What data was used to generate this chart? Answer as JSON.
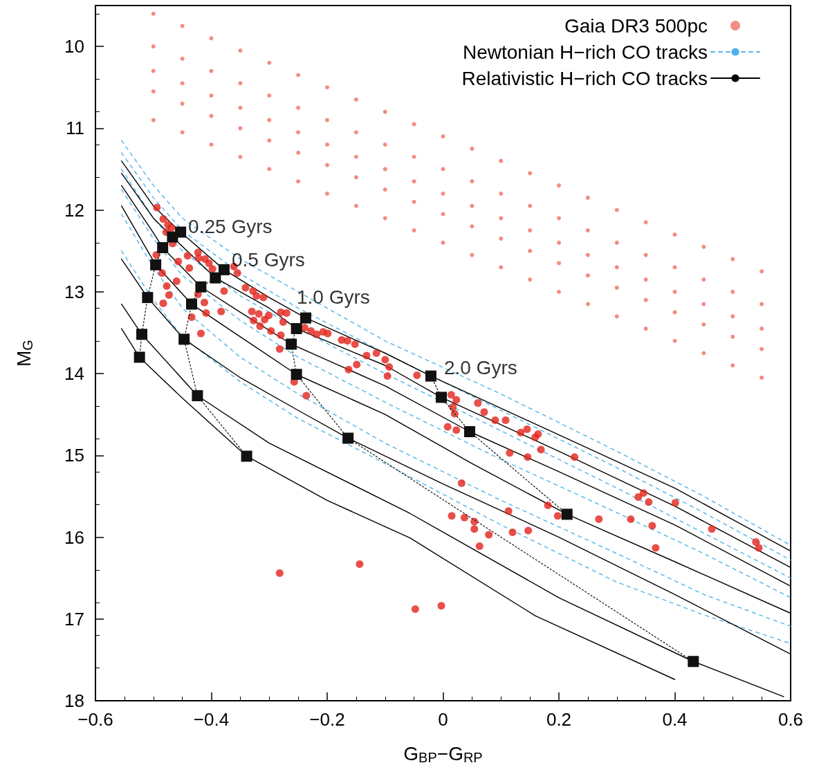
{
  "chart_data": {
    "type": "scatter",
    "xlabel": "G$_{BP}$−G$_{RP}$",
    "ylabel": "M$_{G}$",
    "xlim": [
      -0.6,
      0.6
    ],
    "ylim": [
      18,
      9.5
    ],
    "xticks": [
      {
        "value": -0.6,
        "label": "−0.6"
      },
      {
        "value": -0.4,
        "label": "−0.4"
      },
      {
        "value": -0.2,
        "label": "−0.2"
      },
      0,
      0.2,
      0.4,
      0.6
    ],
    "yticks": [
      10,
      11,
      12,
      13,
      14,
      15,
      16,
      17,
      18
    ],
    "grid": false,
    "legend": "top right",
    "annotations": [
      {
        "text": "0.25 Gyrs",
        "x": -0.453,
        "y": 12.27
      },
      {
        "text": "0.5 Gyrs",
        "x": -0.378,
        "y": 12.73
      },
      {
        "text": "1.0 Gyrs",
        "x": -0.237,
        "y": 13.32
      },
      {
        "text": "2.0 Gyrs",
        "x": -0.021,
        "y": 14.03
      }
    ],
    "series": [
      {
        "name": "Gaia DR3 500pc",
        "color": "#f07060",
        "marker": "circle",
        "x": [
          -0.5,
          -0.5,
          -0.5,
          -0.5,
          -0.5,
          -0.45,
          -0.45,
          -0.45,
          -0.45,
          -0.45,
          -0.4,
          -0.4,
          -0.4,
          -0.4,
          -0.4,
          -0.35,
          -0.35,
          -0.35,
          -0.35,
          -0.35,
          -0.3,
          -0.3,
          -0.3,
          -0.3,
          -0.3,
          -0.25,
          -0.25,
          -0.25,
          -0.25,
          -0.25,
          -0.2,
          -0.2,
          -0.2,
          -0.2,
          -0.2,
          -0.15,
          -0.15,
          -0.15,
          -0.15,
          -0.15,
          -0.1,
          -0.1,
          -0.1,
          -0.1,
          -0.1,
          -0.05,
          -0.05,
          -0.05,
          -0.05,
          -0.05,
          0,
          0,
          0,
          0,
          0,
          0.05,
          0.05,
          0.05,
          0.05,
          0.05,
          0.1,
          0.1,
          0.1,
          0.1,
          0.1,
          0.15,
          0.15,
          0.15,
          0.15,
          0.15,
          0.2,
          0.2,
          0.2,
          0.2,
          0.2,
          0.25,
          0.25,
          0.25,
          0.25,
          0.25,
          0.3,
          0.3,
          0.3,
          0.3,
          0.3,
          0.35,
          0.35,
          0.35,
          0.35,
          0.35,
          0.4,
          0.4,
          0.4,
          0.4,
          0.4,
          0.45,
          0.45,
          0.45,
          0.45,
          0.45,
          0.5,
          0.5,
          0.5,
          0.5,
          0.5,
          0.55,
          0.55,
          0.55,
          0.55,
          0.55
        ],
        "values": [
          9.6,
          10.0,
          10.3,
          10.55,
          10.9,
          9.75,
          10.15,
          10.45,
          10.7,
          11.05,
          9.9,
          10.3,
          10.6,
          10.85,
          11.2,
          10.05,
          10.45,
          10.75,
          11.0,
          11.35,
          10.2,
          10.6,
          10.9,
          11.15,
          11.5,
          10.35,
          10.75,
          11.05,
          11.3,
          11.65,
          10.5,
          10.9,
          11.2,
          11.45,
          11.8,
          10.65,
          11.05,
          11.35,
          11.6,
          11.95,
          10.8,
          11.2,
          11.5,
          11.75,
          12.1,
          10.95,
          11.35,
          11.65,
          11.9,
          12.25,
          11.1,
          11.5,
          11.8,
          12.05,
          12.4,
          11.25,
          11.65,
          11.95,
          12.2,
          12.55,
          11.4,
          11.8,
          12.1,
          12.35,
          12.7,
          11.55,
          11.95,
          12.25,
          12.5,
          12.85,
          11.7,
          12.1,
          12.4,
          12.65,
          13.0,
          11.85,
          12.25,
          12.55,
          12.8,
          13.15,
          12.0,
          12.4,
          12.7,
          12.95,
          13.3,
          12.15,
          12.55,
          12.85,
          13.1,
          13.45,
          12.3,
          12.7,
          13.0,
          13.25,
          13.6,
          12.45,
          12.85,
          13.15,
          13.4,
          13.75,
          12.6,
          13.0,
          13.3,
          13.55,
          13.9,
          12.75,
          13.15,
          13.45,
          13.7,
          14.05
        ]
      },
      {
        "name": "Newtonian H−rich CO tracks",
        "type": "line",
        "color": "#4fb3e8",
        "marker": "none",
        "line_style": "dashed",
        "x": [
          -0.555,
          -0.5,
          -0.45,
          -0.35,
          -0.25,
          -0.1,
          0.1,
          0.3,
          0.45,
          0.6
        ],
        "values": [
          11.15,
          11.7,
          12.1,
          12.6,
          13.0,
          13.6,
          14.25,
          14.95,
          15.5,
          16.1
        ]
      },
      {
        "type": "line",
        "color": "#4fb3e8",
        "marker": "none",
        "line_style": "dashed",
        "x": [
          -0.555,
          -0.5,
          -0.45,
          -0.35,
          -0.25,
          -0.1,
          0.1,
          0.3,
          0.45,
          0.6
        ],
        "values": [
          11.3,
          11.85,
          12.25,
          12.78,
          13.2,
          13.75,
          14.45,
          15.15,
          15.7,
          16.28
        ]
      },
      {
        "type": "line",
        "color": "#4fb3e8",
        "marker": "none",
        "line_style": "dashed",
        "x": [
          -0.555,
          -0.5,
          -0.45,
          -0.35,
          -0.25,
          -0.1,
          0.1,
          0.3,
          0.45,
          0.6
        ],
        "values": [
          11.5,
          12.1,
          12.5,
          13.05,
          13.45,
          14.0,
          14.7,
          15.4,
          15.95,
          16.5
        ]
      },
      {
        "type": "line",
        "color": "#4fb3e8",
        "marker": "none",
        "line_style": "dashed",
        "x": [
          -0.555,
          -0.5,
          -0.45,
          -0.35,
          -0.25,
          -0.1,
          0.1,
          0.3,
          0.45,
          0.6
        ],
        "values": [
          11.75,
          12.35,
          12.8,
          13.35,
          13.8,
          14.35,
          15.05,
          15.7,
          16.2,
          16.74
        ]
      },
      {
        "type": "line",
        "color": "#4fb3e8",
        "marker": "none",
        "line_style": "dashed",
        "x": [
          -0.555,
          -0.5,
          -0.45,
          -0.35,
          -0.25,
          -0.1,
          0.1,
          0.3,
          0.45,
          0.6
        ],
        "values": [
          12.05,
          12.7,
          13.2,
          13.8,
          14.25,
          14.85,
          15.55,
          16.2,
          16.7,
          17.09
        ]
      },
      {
        "type": "line",
        "color": "#4fb3e8",
        "marker": "none",
        "line_style": "dashed",
        "x": [
          -0.555,
          -0.5,
          -0.45,
          -0.35,
          -0.25,
          -0.1,
          0.1,
          0.3,
          0.45,
          0.6
        ],
        "values": [
          12.5,
          13.1,
          13.55,
          14.1,
          14.55,
          15.1,
          15.85,
          16.55,
          16.95,
          17.3
        ]
      },
      {
        "name": "Relativistic H−rich CO tracks",
        "type": "line",
        "color": "#000000",
        "marker": "none",
        "line_style": "solid",
        "x": [
          -0.555,
          -0.5,
          -0.453,
          -0.378,
          -0.3,
          -0.237,
          -0.1,
          -0.021,
          0.2,
          0.4,
          0.6
        ],
        "values": [
          11.4,
          11.95,
          12.27,
          12.73,
          13.07,
          13.32,
          13.75,
          14.03,
          14.75,
          15.4,
          16.17
        ]
      },
      {
        "type": "line",
        "color": "#000000",
        "marker": "none",
        "line_style": "solid",
        "x": [
          -0.555,
          -0.5,
          -0.467,
          -0.393,
          -0.3,
          -0.253,
          -0.1,
          -0.003,
          0.2,
          0.4,
          0.6
        ],
        "values": [
          11.55,
          12.1,
          12.33,
          12.83,
          13.2,
          13.45,
          13.9,
          14.29,
          14.95,
          15.62,
          16.37
        ]
      },
      {
        "type": "line",
        "color": "#000000",
        "marker": "none",
        "line_style": "solid",
        "x": [
          -0.555,
          -0.5,
          -0.484,
          -0.418,
          -0.35,
          -0.262,
          -0.1,
          0.046,
          0.2,
          0.4,
          0.6
        ],
        "values": [
          11.7,
          12.28,
          12.46,
          12.94,
          13.25,
          13.64,
          14.15,
          14.71,
          15.2,
          15.85,
          16.6
        ]
      },
      {
        "type": "line",
        "color": "#000000",
        "marker": "none",
        "line_style": "solid",
        "x": [
          -0.555,
          -0.496,
          -0.434,
          -0.35,
          -0.253,
          -0.1,
          0.05,
          0.214,
          0.4,
          0.6
        ],
        "values": [
          11.95,
          12.67,
          13.15,
          13.55,
          14.01,
          14.5,
          15.1,
          15.72,
          16.3,
          16.93
        ]
      },
      {
        "type": "line",
        "color": "#000000",
        "marker": "none",
        "line_style": "solid",
        "x": [
          -0.555,
          -0.51,
          -0.447,
          -0.35,
          -0.25,
          -0.164,
          0,
          0.2,
          0.4,
          0.6
        ],
        "values": [
          12.6,
          13.07,
          13.58,
          14.05,
          14.45,
          14.79,
          15.35,
          16.0,
          16.7,
          17.43
        ]
      },
      {
        "type": "line",
        "color": "#000000",
        "marker": "none",
        "line_style": "solid",
        "x": [
          -0.555,
          -0.52,
          -0.424,
          -0.3,
          -0.057,
          0.2,
          0.432,
          0.588
        ],
        "values": [
          13.15,
          13.52,
          14.27,
          14.85,
          15.71,
          16.74,
          17.52,
          17.95
        ]
      },
      {
        "type": "line",
        "color": "#000000",
        "marker": "none",
        "line_style": "solid",
        "x": [
          -0.555,
          -0.524,
          -0.45,
          -0.339,
          -0.2,
          -0.057,
          0.159,
          0.4
        ],
        "values": [
          13.45,
          13.8,
          14.3,
          15.01,
          15.55,
          16.01,
          16.96,
          17.74
        ]
      },
      {
        "type": "line",
        "color": "#111111",
        "marker": "square",
        "line_style": "dotted",
        "x": [
          -0.453,
          -0.467,
          -0.484,
          -0.496,
          -0.51,
          -0.52,
          -0.524
        ],
        "values": [
          12.27,
          12.33,
          12.46,
          12.67,
          13.07,
          13.52,
          13.8
        ]
      },
      {
        "type": "line",
        "color": "#111111",
        "marker": "square",
        "line_style": "dotted",
        "x": [
          -0.378,
          -0.393,
          -0.418,
          -0.434,
          -0.447,
          -0.424,
          -0.339
        ],
        "values": [
          12.73,
          12.83,
          12.94,
          13.15,
          13.58,
          14.27,
          15.01
        ]
      },
      {
        "type": "line",
        "color": "#111111",
        "marker": "square",
        "line_style": "dotted",
        "x": [
          -0.237,
          -0.253,
          -0.262,
          -0.253,
          -0.164,
          0.432
        ],
        "values": [
          13.32,
          13.45,
          13.64,
          14.01,
          14.79,
          17.52
        ]
      },
      {
        "type": "line",
        "color": "#111111",
        "marker": "square",
        "line_style": "dotted",
        "x": [
          -0.021,
          -0.003,
          0.046,
          0.214
        ],
        "values": [
          14.03,
          14.29,
          14.71,
          15.72
        ]
      },
      {
        "color": "#e2231a",
        "marker": "circle",
        "x": [
          -0.494,
          -0.483,
          -0.475,
          -0.469,
          -0.478,
          -0.467,
          -0.495,
          -0.457,
          -0.441,
          -0.423,
          -0.422,
          -0.411,
          -0.404,
          -0.438,
          -0.398,
          -0.361,
          -0.355,
          -0.341,
          -0.328,
          -0.485,
          -0.477,
          -0.483,
          -0.46,
          -0.473,
          -0.423,
          -0.412,
          -0.378,
          -0.383,
          -0.418,
          -0.434,
          -0.409,
          -0.322,
          -0.31,
          -0.33,
          -0.318,
          -0.308,
          -0.301,
          -0.327,
          -0.316,
          -0.297,
          -0.28,
          -0.27,
          -0.276,
          -0.28,
          -0.282,
          -0.257,
          -0.236,
          -0.239,
          -0.228,
          -0.218,
          -0.207,
          -0.199,
          -0.175,
          -0.165,
          -0.152,
          -0.132,
          -0.115,
          -0.1,
          -0.093,
          -0.096,
          -0.163,
          -0.149,
          -0.045,
          0.014,
          0.023,
          0.017,
          0.02,
          0.06,
          0.008,
          0.023,
          0.071,
          0.09,
          0.108,
          0.134,
          0.145,
          0.159,
          0.164,
          0.169,
          0.115,
          0.146,
          0.227,
          0.032,
          0.015,
          0.037,
          0.054,
          0.054,
          0.079,
          0.063,
          0.113,
          0.12,
          0.147,
          0.181,
          0.198,
          0.269,
          0.324,
          0.337,
          0.346,
          0.355,
          0.401,
          0.361,
          0.367,
          0.464,
          0.54,
          0.545,
          -0.282,
          -0.144,
          -0.048,
          -0.003
        ],
        "values": [
          11.97,
          12.11,
          12.18,
          12.22,
          12.27,
          12.41,
          12.55,
          12.63,
          12.56,
          12.52,
          12.59,
          12.6,
          12.65,
          12.71,
          12.72,
          12.69,
          12.77,
          12.95,
          12.99,
          12.77,
          12.93,
          13.14,
          12.87,
          13.04,
          13.03,
          13.13,
          12.99,
          13.24,
          13.51,
          13.31,
          13.26,
          13.05,
          13.07,
          13.24,
          13.27,
          13.34,
          13.29,
          13.35,
          13.42,
          13.48,
          13.25,
          13.26,
          13.37,
          13.53,
          13.7,
          14.1,
          14.27,
          13.44,
          13.48,
          13.52,
          13.49,
          13.51,
          13.59,
          13.6,
          13.64,
          13.78,
          13.75,
          13.83,
          13.92,
          14.03,
          13.95,
          13.89,
          14.02,
          14.26,
          14.32,
          14.41,
          14.49,
          14.36,
          14.65,
          14.69,
          14.47,
          14.57,
          14.57,
          14.72,
          14.68,
          14.78,
          14.74,
          14.93,
          14.97,
          15.02,
          15.02,
          15.34,
          15.74,
          15.76,
          15.81,
          15.9,
          15.97,
          16.11,
          15.68,
          15.94,
          15.92,
          15.61,
          15.74,
          15.78,
          15.78,
          15.51,
          15.46,
          15.57,
          15.58,
          15.86,
          16.13,
          15.9,
          16.06,
          16.13,
          16.44,
          16.33,
          16.88,
          16.84
        ]
      }
    ]
  }
}
